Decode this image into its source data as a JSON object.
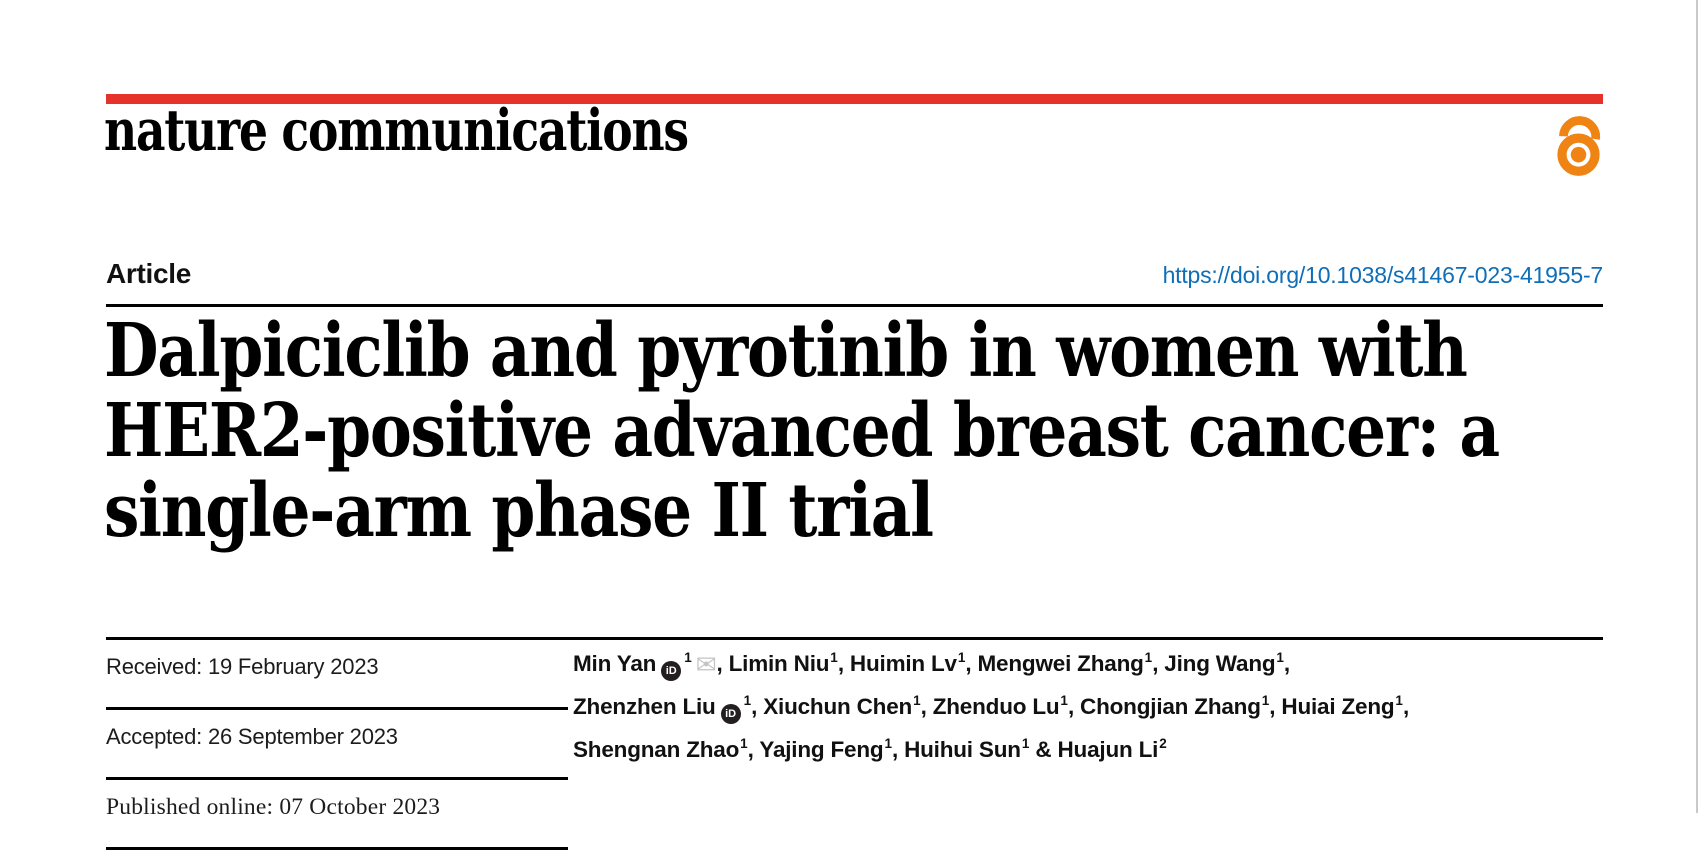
{
  "brand": {
    "wordmark": "nature communications",
    "open_access_icon": "open-lock-icon"
  },
  "header": {
    "article_label": "Article",
    "doi": "https://doi.org/10.1038/s41467-023-41955-7"
  },
  "title": "Dalpiciclib and pyrotinib in women with\nHER2-positive advanced breast cancer: a\nsingle-arm phase II trial",
  "dates": {
    "items": [
      {
        "text": "Received: 19 February 2023"
      },
      {
        "text": "Accepted: 26 September 2023"
      },
      {
        "text": "Published online: 07 October 2023"
      }
    ]
  },
  "authors": {
    "orcid_glyph": "iD",
    "envelope_glyph": "✉",
    "list": [
      {
        "name": "Min Yan",
        "sup": "1",
        "orcid": true,
        "mail": true,
        "sep": ", "
      },
      {
        "name": "Limin Niu",
        "sup": "1",
        "sep": ", "
      },
      {
        "name": "Huimin Lv",
        "sup": "1",
        "sep": ", "
      },
      {
        "name": "Mengwei Zhang",
        "sup": "1",
        "sep": ", "
      },
      {
        "name": "Jing Wang",
        "sup": "1",
        "sep": ",",
        "break": true
      },
      {
        "name": "Zhenzhen Liu",
        "sup": "1",
        "orcid": true,
        "sep": ", "
      },
      {
        "name": "Xiuchun Chen",
        "sup": "1",
        "sep": ", "
      },
      {
        "name": "Zhenduo Lu",
        "sup": "1",
        "sep": ", "
      },
      {
        "name": "Chongjian Zhang",
        "sup": "1",
        "sep": ", "
      },
      {
        "name": "Huiai Zeng",
        "sup": "1",
        "sep": ",",
        "break": true
      },
      {
        "name": "Shengnan Zhao",
        "sup": "1",
        "sep": ", "
      },
      {
        "name": "Yajing Feng",
        "sup": "1",
        "sep": ", "
      },
      {
        "name": "Huihui Sun",
        "sup": "1",
        "sep": " & "
      },
      {
        "name": "Huajun Li",
        "sup": "2",
        "sep": ""
      }
    ]
  },
  "colors": {
    "brand_bar_red": "#E5332B",
    "doi_link_blue": "#0E6EB8",
    "open_access_orange": "#EF8414",
    "rule_black": "#000000",
    "orcid_badge_black": "#231F20",
    "envelope_gray": "#C4C4C4",
    "page_edge_gray": "#C9C9C9"
  }
}
